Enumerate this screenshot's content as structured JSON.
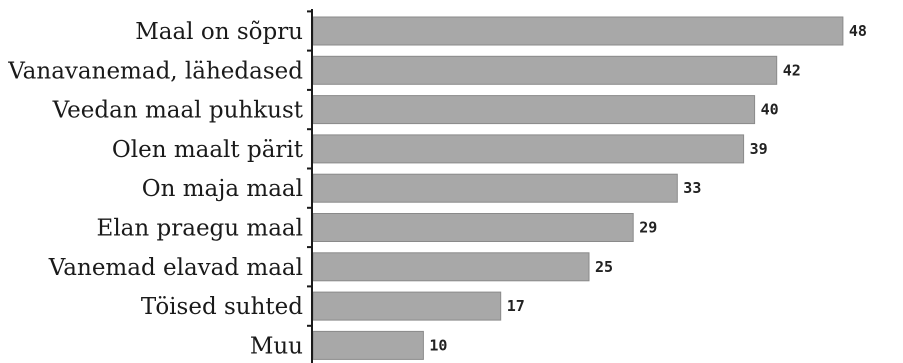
{
  "chart_data": {
    "type": "bar",
    "orientation": "horizontal",
    "categories": [
      "Maal on sõpru",
      "Vanavanemad, lähedased",
      "Veedan maal puhkust",
      "Olen maalt pärit",
      "On maja maal",
      "Elan praegu maal",
      "Vanemad elavad maal",
      "Töised suhted",
      "Muu"
    ],
    "values": [
      48,
      42,
      40,
      39,
      33,
      29,
      25,
      17,
      10
    ],
    "xlim": [
      0,
      50
    ],
    "grid": false,
    "legend": "none",
    "bar_color": "#a8a8a8",
    "axis_color": "#1a1a1a"
  }
}
